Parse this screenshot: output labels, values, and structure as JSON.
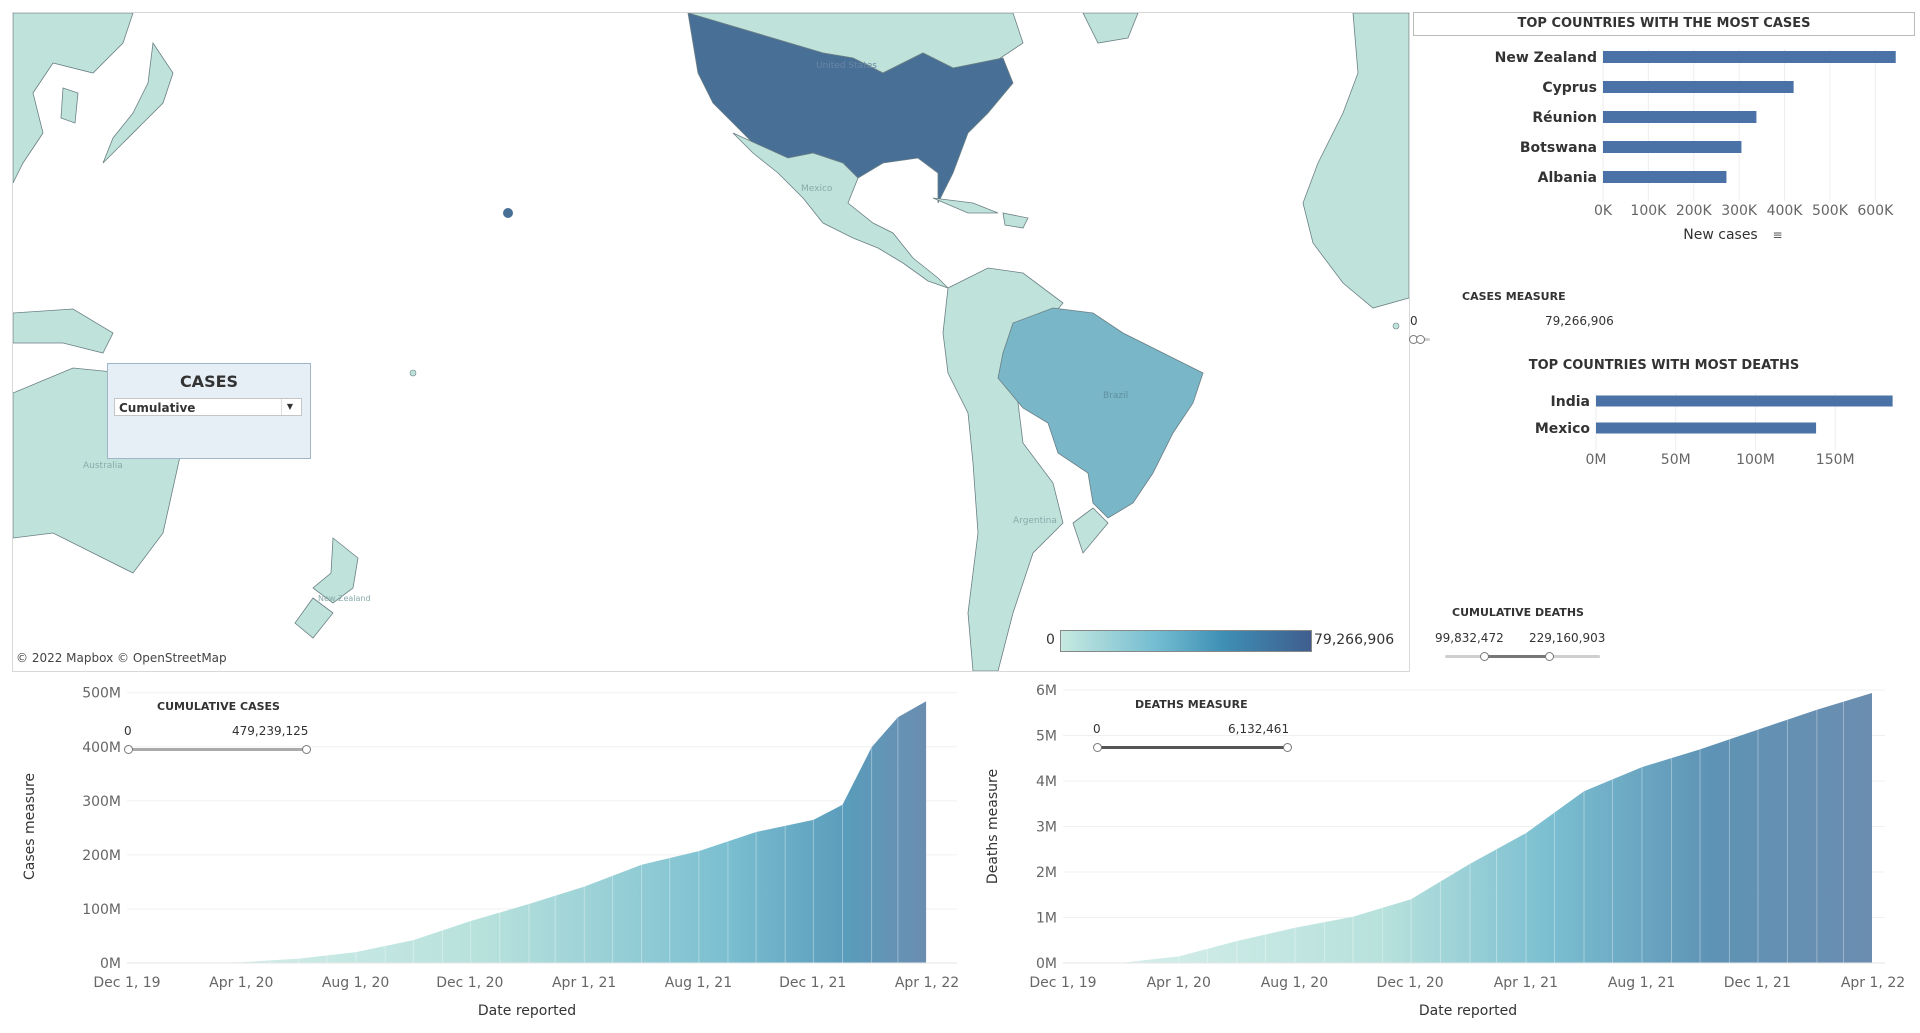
{
  "map": {
    "credit": "© 2022 Mapbox © OpenStreetMap",
    "place_labels": [
      "United States",
      "Mexico",
      "Brazil",
      "Argentina",
      "Australia",
      "New Zealand"
    ],
    "legend": {
      "min": "0",
      "max": "79,266,906"
    },
    "colors": {
      "dark": "#486f96",
      "mid": "#79b6c8",
      "light": "#bfe3da",
      "land": "#b9e0d5",
      "border": "#6b7f85"
    }
  },
  "cases_filter": {
    "title": "CASES",
    "selected": "Cumulative"
  },
  "top_cases": {
    "title": "TOP COUNTRIES WITH THE MOST CASES",
    "axis_label": "New cases",
    "ticks": [
      "0K",
      "100K",
      "200K",
      "300K",
      "400K",
      "500K",
      "600K"
    ]
  },
  "cases_measure": {
    "title": "CASES MEASURE",
    "min": "0",
    "max": "79,266,906"
  },
  "top_deaths": {
    "title": "TOP COUNTRIES WITH MOST DEATHS",
    "ticks": [
      "0M",
      "50M",
      "100M",
      "150M"
    ]
  },
  "cumulative_deaths": {
    "title": "CUMULATIVE DEATHS",
    "min": "99,832,472",
    "max": "229,160,903"
  },
  "cumulative_cases": {
    "title": "CUMULATIVE CASES",
    "min": "0",
    "max": "479,239,125"
  },
  "deaths_measure": {
    "title": "DEATHS MEASURE",
    "min": "0",
    "max": "6,132,461"
  },
  "area_cases": {
    "ylabel": "Cases measure",
    "xlabel": "Date reported",
    "yticks": [
      "0M",
      "100M",
      "200M",
      "300M",
      "400M",
      "500M"
    ],
    "xticks": [
      "Dec 1, 19",
      "Apr 1, 20",
      "Aug 1, 20",
      "Dec 1, 20",
      "Apr 1, 21",
      "Aug 1, 21",
      "Dec 1, 21",
      "Apr 1, 22"
    ]
  },
  "area_deaths": {
    "ylabel": "Deaths measure",
    "xlabel": "Date reported",
    "yticks": [
      "0M",
      "1M",
      "2M",
      "3M",
      "4M",
      "5M",
      "6M"
    ],
    "xticks": [
      "Dec 1, 19",
      "Apr 1, 20",
      "Aug 1, 20",
      "Dec 1, 20",
      "Apr 1, 21",
      "Aug 1, 21",
      "Dec 1, 21",
      "Apr 1, 22"
    ]
  },
  "chart_data": [
    {
      "type": "bar",
      "title": "TOP COUNTRIES WITH THE MOST CASES",
      "categories": [
        "New Zealand",
        "Cyprus",
        "Réunion",
        "Botswana",
        "Albania"
      ],
      "values": [
        645000,
        420000,
        338000,
        305000,
        272000
      ],
      "xlabel": "New cases",
      "ylabel": "",
      "xlim": [
        0,
        650000
      ],
      "color": "#4a72a6"
    },
    {
      "type": "bar",
      "title": "TOP COUNTRIES WITH MOST DEATHS",
      "categories": [
        "India",
        "Mexico"
      ],
      "values": [
        186000000,
        138000000
      ],
      "xlabel": "",
      "ylabel": "",
      "xlim": [
        0,
        190000000
      ],
      "color": "#4a72a6"
    },
    {
      "type": "area",
      "title": "",
      "x": [
        "2019-12-01",
        "2020-02-01",
        "2020-04-01",
        "2020-06-01",
        "2020-08-01",
        "2020-10-01",
        "2020-12-01",
        "2021-02-01",
        "2021-04-01",
        "2021-06-01",
        "2021-08-01",
        "2021-10-01",
        "2021-12-01",
        "2022-01-01",
        "2022-02-01",
        "2022-03-01",
        "2022-03-31"
      ],
      "y": [
        0,
        200000,
        1500000,
        8000000,
        20000000,
        42000000,
        77000000,
        108000000,
        140000000,
        180000000,
        205000000,
        240000000,
        262000000,
        290000000,
        395000000,
        450000000,
        479239125
      ],
      "xlabel": "Date reported",
      "ylabel": "Cases measure",
      "ylim": [
        0,
        500000000
      ],
      "grid": true
    },
    {
      "type": "area",
      "title": "",
      "x": [
        "2019-12-01",
        "2020-02-01",
        "2020-04-01",
        "2020-06-01",
        "2020-08-01",
        "2020-10-01",
        "2020-12-01",
        "2021-02-01",
        "2021-04-01",
        "2021-06-01",
        "2021-08-01",
        "2021-10-01",
        "2021-12-01",
        "2022-02-01",
        "2022-03-31"
      ],
      "y": [
        0,
        5000,
        150000,
        500000,
        800000,
        1050000,
        1450000,
        2250000,
        2950000,
        3900000,
        4450000,
        4850000,
        5300000,
        5750000,
        6132461
      ],
      "xlabel": "Date reported",
      "ylabel": "Deaths measure",
      "ylim": [
        0,
        6200000
      ],
      "grid": true
    }
  ]
}
